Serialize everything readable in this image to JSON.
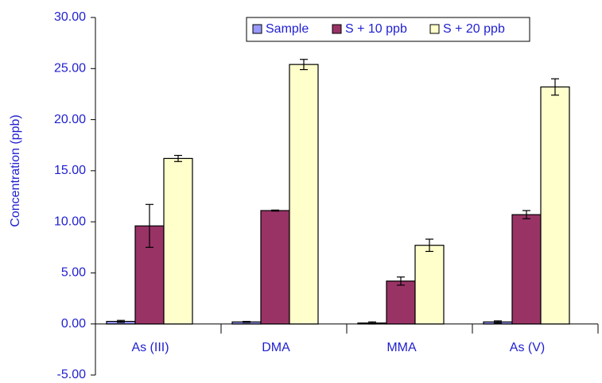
{
  "chart_data": {
    "type": "bar",
    "y_label": "Concentration (ppb)",
    "categories": [
      "As (III)",
      "DMA",
      "MMA",
      "As (V)"
    ],
    "series": [
      {
        "name": "Sample",
        "color": "#9999ff",
        "values": [
          0.25,
          0.2,
          0.1,
          0.2
        ],
        "errors": [
          0.1,
          0.05,
          0.1,
          0.1
        ]
      },
      {
        "name": "S + 10 ppb",
        "color": "#993366",
        "values": [
          9.6,
          11.1,
          4.2,
          10.7
        ],
        "errors": [
          2.1,
          0.05,
          0.4,
          0.4
        ]
      },
      {
        "name": "S + 20 ppb",
        "color": "#ffffcc",
        "values": [
          16.2,
          25.4,
          7.7,
          23.2
        ],
        "errors": [
          0.3,
          0.5,
          0.6,
          0.8
        ]
      }
    ],
    "ylim": [
      -5,
      30
    ],
    "yticks": [
      {
        "value": -5,
        "label": "-5.00"
      },
      {
        "value": 0,
        "label": "0.00"
      },
      {
        "value": 5,
        "label": "5.00"
      },
      {
        "value": 10,
        "label": "10.00"
      },
      {
        "value": 15,
        "label": "15.00"
      },
      {
        "value": 20,
        "label": "20.00"
      },
      {
        "value": 25,
        "label": "25.00"
      },
      {
        "value": 30,
        "label": "30.00"
      }
    ],
    "grid": false,
    "legend": "top"
  }
}
